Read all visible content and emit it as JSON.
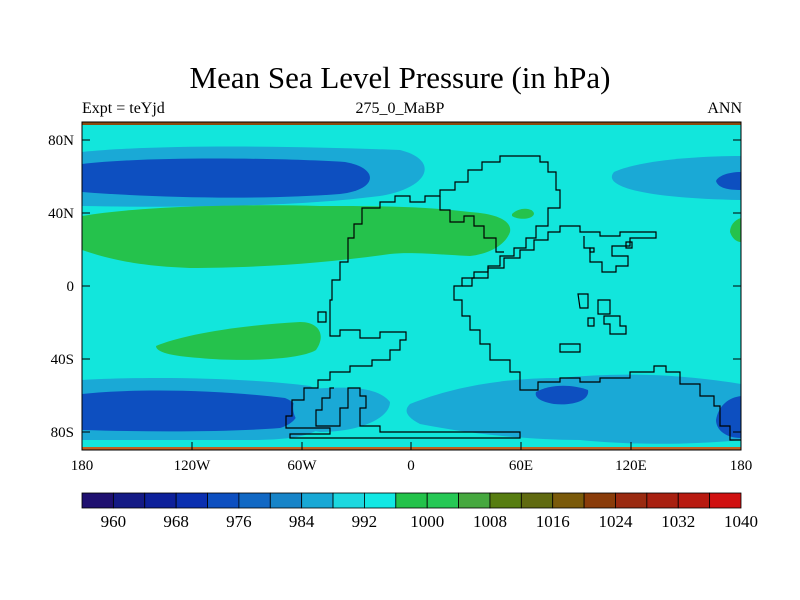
{
  "title": "Mean Sea Level Pressure (in hPa)",
  "subtitle_left": "Expt = teYjd",
  "subtitle_center": "275_0_MaBP",
  "subtitle_right": "ANN",
  "map": {
    "x_ticks": [
      "180",
      "120W",
      "60W",
      "0",
      "60E",
      "120E",
      "180"
    ],
    "y_ticks": [
      "80N",
      "40N",
      "0",
      "40S",
      "80S"
    ]
  },
  "colorbar": {
    "labels": [
      "960",
      "968",
      "976",
      "984",
      "992",
      "1000",
      "1008",
      "1016",
      "1024",
      "1032",
      "1040"
    ],
    "colors": [
      "#1f1070",
      "#141a85",
      "#0d209a",
      "#0a2fb0",
      "#0d4fc0",
      "#1168c4",
      "#1784c8",
      "#18a8d5",
      "#1cd8e0",
      "#12e8e4",
      "#23c24a",
      "#26c855",
      "#46a83f",
      "#577d11",
      "#606a10",
      "#7a5a0a",
      "#8a3c0a",
      "#9a2a10",
      "#a82010",
      "#b81a10",
      "#d01010"
    ]
  },
  "colors": {
    "sea_bg": "#12e6dc",
    "mid_blue": "#1aa9d6",
    "deep_blue": "#0d4fc0",
    "green": "#25c24c",
    "coast": "#000000"
  }
}
